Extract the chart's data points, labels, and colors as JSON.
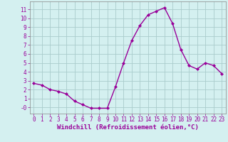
{
  "x": [
    0,
    1,
    2,
    3,
    4,
    5,
    6,
    7,
    8,
    9,
    10,
    11,
    12,
    13,
    14,
    15,
    16,
    17,
    18,
    19,
    20,
    21,
    22,
    23
  ],
  "y": [
    2.7,
    2.5,
    2.0,
    1.8,
    1.5,
    0.7,
    0.3,
    -0.1,
    -0.1,
    -0.1,
    2.3,
    5.0,
    7.5,
    9.2,
    10.4,
    10.8,
    11.2,
    9.4,
    6.5,
    4.7,
    4.3,
    5.0,
    4.7,
    3.8
  ],
  "line_color": "#990099",
  "marker": "D",
  "marker_size": 2.0,
  "line_width": 1.0,
  "bg_color": "#d4f0f0",
  "grid_color": "#aacccc",
  "xlabel": "Windchill (Refroidissement éolien,°C)",
  "xlabel_fontsize": 6.5,
  "ylabel_ticks": [
    0,
    1,
    2,
    3,
    4,
    5,
    6,
    7,
    8,
    9,
    10,
    11
  ],
  "xlim": [
    -0.5,
    23.5
  ],
  "ylim": [
    -0.7,
    11.9
  ],
  "xtick_labels": [
    "0",
    "1",
    "2",
    "3",
    "4",
    "5",
    "6",
    "7",
    "8",
    "9",
    "10",
    "11",
    "12",
    "13",
    "14",
    "15",
    "16",
    "17",
    "18",
    "19",
    "20",
    "21",
    "22",
    "23"
  ],
  "tick_fontsize": 5.5,
  "ytick_labels": [
    "-0",
    "1",
    "2",
    "3",
    "4",
    "5",
    "6",
    "7",
    "8",
    "9",
    "10",
    "11"
  ],
  "text_color": "#990099"
}
